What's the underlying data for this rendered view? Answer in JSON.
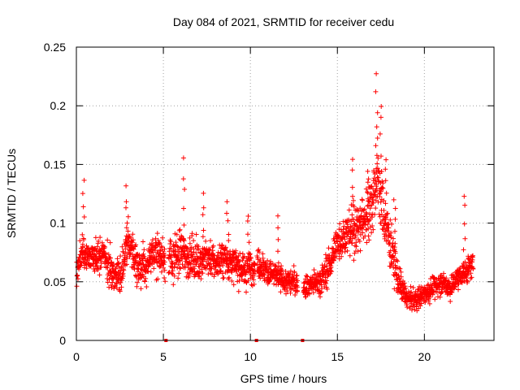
{
  "chart_data": {
    "type": "scatter",
    "title": "Day 084 of 2021, SRMTID for receiver cedu",
    "xlabel": "GPS time / hours",
    "ylabel": "SRMTID / TECUs",
    "xlim": [
      0,
      24
    ],
    "ylim": [
      0,
      0.25
    ],
    "x_ticks": [
      0,
      5,
      10,
      15,
      20
    ],
    "x_tick_labels": [
      "0",
      "5",
      "10",
      "15",
      "20"
    ],
    "y_ticks": [
      0,
      0.05,
      0.1,
      0.15,
      0.2,
      0.25
    ],
    "y_tick_labels": [
      "0",
      "0.05",
      "0.1",
      "0.15",
      "0.2",
      "0.25"
    ],
    "grid": true,
    "marker": "+",
    "series_color": "#ff0000",
    "zero_markers_x": [
      5.15,
      10.35,
      13.0
    ],
    "trend": [
      [
        0.0,
        0.055
      ],
      [
        0.3,
        0.075
      ],
      [
        0.6,
        0.072
      ],
      [
        1.0,
        0.068
      ],
      [
        1.5,
        0.075
      ],
      [
        2.0,
        0.06
      ],
      [
        2.5,
        0.055
      ],
      [
        3.0,
        0.085
      ],
      [
        3.5,
        0.065
      ],
      [
        4.0,
        0.06
      ],
      [
        4.5,
        0.075
      ],
      [
        5.0,
        0.07
      ],
      [
        5.5,
        0.068
      ],
      [
        6.0,
        0.075
      ],
      [
        6.5,
        0.07
      ],
      [
        7.0,
        0.068
      ],
      [
        7.5,
        0.072
      ],
      [
        8.0,
        0.065
      ],
      [
        8.5,
        0.07
      ],
      [
        9.0,
        0.065
      ],
      [
        9.5,
        0.06
      ],
      [
        10.0,
        0.062
      ],
      [
        10.5,
        0.065
      ],
      [
        11.0,
        0.058
      ],
      [
        11.5,
        0.055
      ],
      [
        12.0,
        0.05
      ],
      [
        12.5,
        0.05
      ],
      [
        13.0,
        0.045
      ],
      [
        13.5,
        0.048
      ],
      [
        14.0,
        0.05
      ],
      [
        14.5,
        0.062
      ],
      [
        15.0,
        0.085
      ],
      [
        15.5,
        0.09
      ],
      [
        16.0,
        0.095
      ],
      [
        16.5,
        0.1
      ],
      [
        17.0,
        0.12
      ],
      [
        17.3,
        0.14
      ],
      [
        17.6,
        0.11
      ],
      [
        18.0,
        0.085
      ],
      [
        18.5,
        0.05
      ],
      [
        19.0,
        0.035
      ],
      [
        19.5,
        0.035
      ],
      [
        20.0,
        0.04
      ],
      [
        20.5,
        0.045
      ],
      [
        21.0,
        0.05
      ],
      [
        21.5,
        0.045
      ],
      [
        22.0,
        0.055
      ],
      [
        22.5,
        0.06
      ],
      [
        22.8,
        0.065
      ]
    ],
    "spread": [
      [
        0.0,
        0.018
      ],
      [
        3.0,
        0.025
      ],
      [
        6.0,
        0.025
      ],
      [
        10.0,
        0.02
      ],
      [
        13.0,
        0.014
      ],
      [
        15.0,
        0.022
      ],
      [
        16.5,
        0.035
      ],
      [
        17.3,
        0.045
      ],
      [
        18.0,
        0.03
      ],
      [
        19.0,
        0.012
      ],
      [
        21.0,
        0.014
      ],
      [
        22.8,
        0.015
      ]
    ],
    "peaks": [
      [
        0.4,
        0.138
      ],
      [
        2.9,
        0.133
      ],
      [
        6.2,
        0.157
      ],
      [
        8.7,
        0.12
      ],
      [
        11.6,
        0.108
      ],
      [
        15.9,
        0.157
      ],
      [
        17.25,
        0.23
      ],
      [
        17.5,
        0.205
      ],
      [
        17.8,
        0.16
      ],
      [
        22.3,
        0.127
      ],
      [
        18.3,
        0.125
      ],
      [
        16.8,
        0.15
      ],
      [
        9.9,
        0.11
      ],
      [
        7.3,
        0.128
      ]
    ],
    "gaps": [
      [
        5.1,
        5.3
      ],
      [
        10.28,
        10.38
      ],
      [
        12.72,
        13.05
      ]
    ],
    "n_points": 2400
  }
}
